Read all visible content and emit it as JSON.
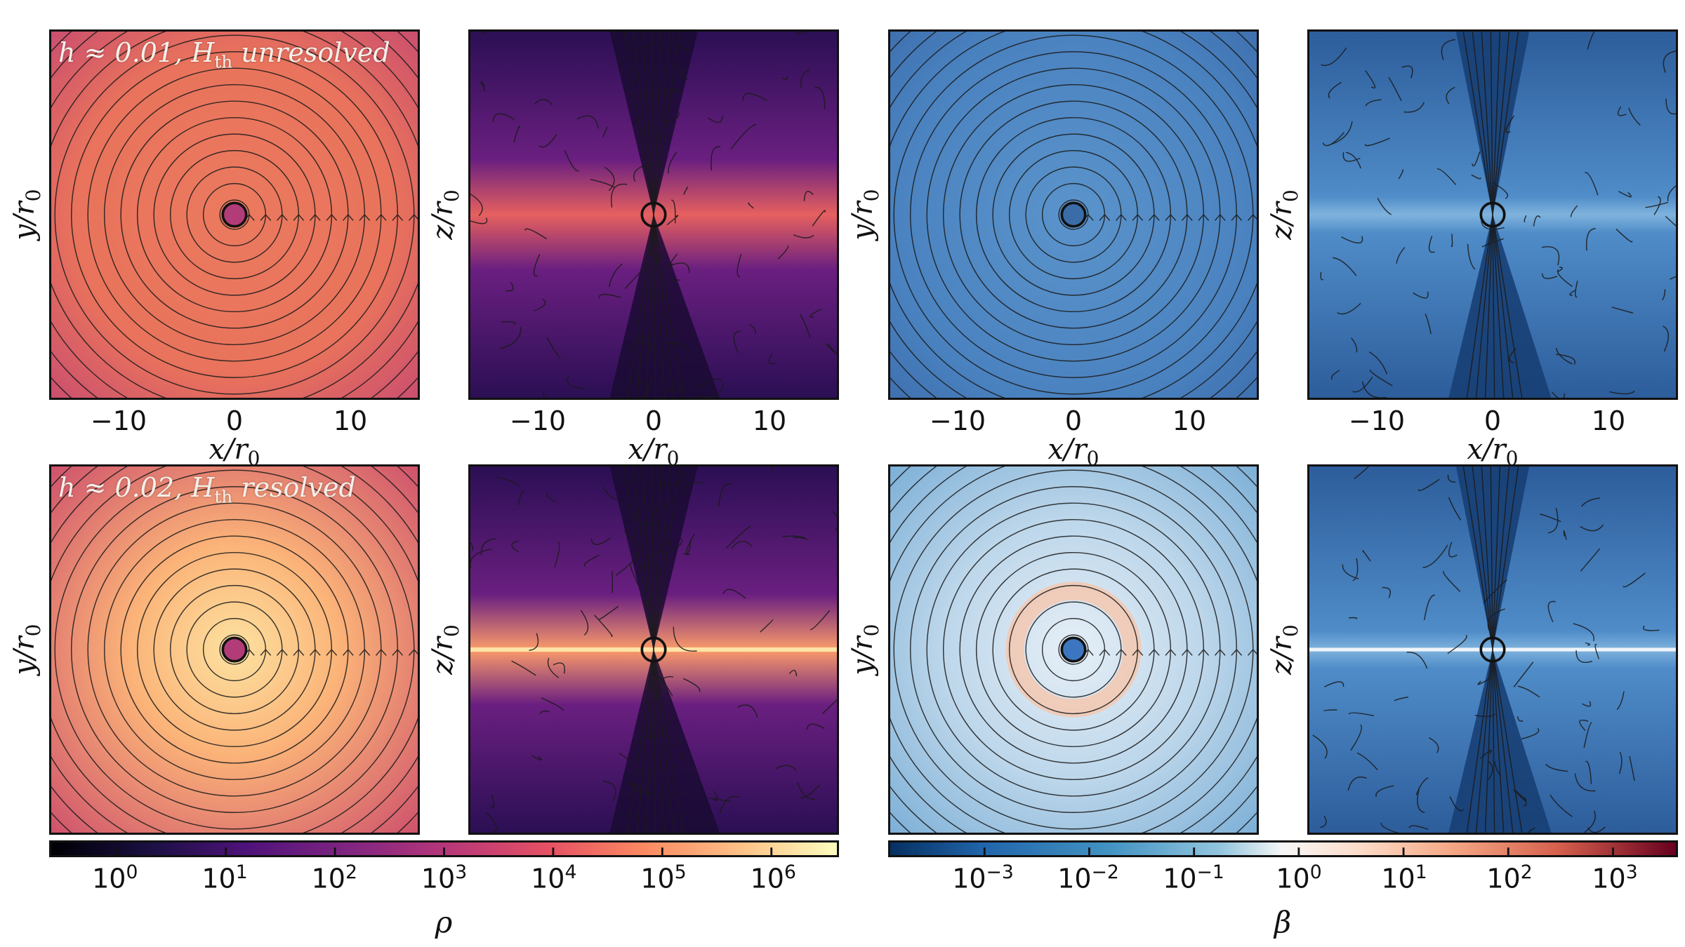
{
  "chart_data": {
    "type": "heatmap",
    "panels": [
      {
        "id": "rho-xy-h001",
        "quantity": "rho",
        "plane": "xy",
        "annotation": "h ≈ 0.01, Hth unresolved",
        "xlabel": "x/r0",
        "ylabel": "y/r0"
      },
      {
        "id": "rho-xz-h001",
        "quantity": "rho",
        "plane": "xz",
        "annotation": "",
        "xlabel": "x/r0",
        "ylabel": "z/r0"
      },
      {
        "id": "beta-xy-h001",
        "quantity": "beta",
        "plane": "xy",
        "annotation": "",
        "xlabel": "x/r0",
        "ylabel": "y/r0"
      },
      {
        "id": "beta-xz-h001",
        "quantity": "beta",
        "plane": "xz",
        "annotation": "",
        "xlabel": "x/r0",
        "ylabel": "z/r0"
      },
      {
        "id": "rho-xy-h002",
        "quantity": "rho",
        "plane": "xy",
        "annotation": "h ≈ 0.02, Hth resolved",
        "xlabel": "",
        "ylabel": "y/r0"
      },
      {
        "id": "rho-xz-h002",
        "quantity": "rho",
        "plane": "xz",
        "annotation": "",
        "xlabel": "",
        "ylabel": "z/r0"
      },
      {
        "id": "beta-xy-h002",
        "quantity": "beta",
        "plane": "xy",
        "annotation": "",
        "xlabel": "",
        "ylabel": "y/r0"
      },
      {
        "id": "beta-xz-h002",
        "quantity": "beta",
        "plane": "xz",
        "annotation": "",
        "xlabel": "",
        "ylabel": "z/r0"
      }
    ],
    "xticks": [
      "−10",
      "0",
      "10"
    ],
    "xtick_values": [
      -10,
      0,
      10
    ],
    "xlim": [
      -16,
      16
    ],
    "ylim": [
      -16,
      16
    ],
    "colorbars": [
      {
        "label": "ρ",
        "colormap": "magma",
        "scale": "log",
        "ticks": [
          "10^0",
          "10^1",
          "10^2",
          "10^3",
          "10^4",
          "10^5",
          "10^6"
        ],
        "tick_exponents": [
          0,
          1,
          2,
          3,
          4,
          5,
          6
        ],
        "range_exponent": [
          -0.6,
          6.6
        ]
      },
      {
        "label": "β",
        "colormap": "RdBu_r",
        "scale": "log",
        "ticks": [
          "10^-3",
          "10^-2",
          "10^-1",
          "10^0",
          "10^1",
          "10^2",
          "10^3"
        ],
        "tick_exponents": [
          -3,
          -2,
          -1,
          0,
          1,
          2,
          3
        ],
        "range_exponent": [
          -3.9,
          3.6
        ]
      }
    ]
  }
}
